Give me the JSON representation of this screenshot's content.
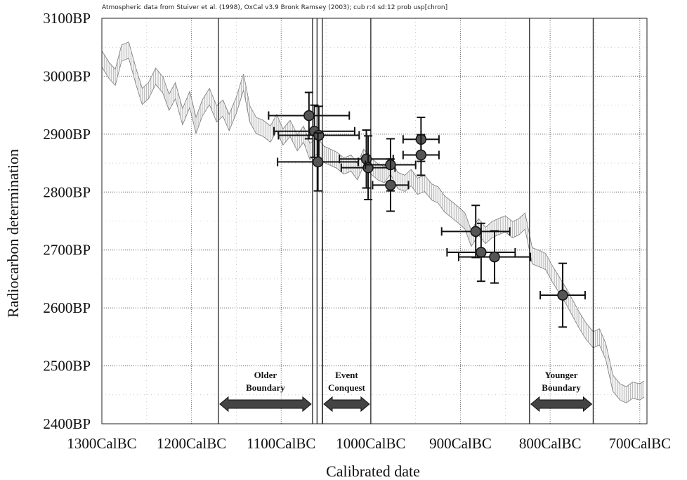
{
  "chart_data": {
    "type": "scatter",
    "caption": "Atmospheric data from Stuiver et al. (1998), OxCal v3.9 Bronk Ramsey (2003); cub r:4 sd:12 prob usp[chron]",
    "xlabel": "Calibrated date",
    "ylabel": "Radiocarbon determination",
    "x_unit": "years BC",
    "xlim": [
      -1300,
      -692
    ],
    "ylim": [
      2400,
      3100
    ],
    "x_ticks": [
      {
        "value": -1300,
        "label": "1300CalBC"
      },
      {
        "value": -1200,
        "label": "1200CalBC"
      },
      {
        "value": -1100,
        "label": "1100CalBC"
      },
      {
        "value": -1000,
        "label": "1000CalBC"
      },
      {
        "value": -900,
        "label": "900CalBC"
      },
      {
        "value": -800,
        "label": "800CalBC"
      },
      {
        "value": -700,
        "label": "700CalBC"
      }
    ],
    "y_ticks": [
      {
        "value": 3100,
        "label": "3100BP"
      },
      {
        "value": 3000,
        "label": "3000BP"
      },
      {
        "value": 2900,
        "label": "2900BP"
      },
      {
        "value": 2800,
        "label": "2800BP"
      },
      {
        "value": 2700,
        "label": "2700BP"
      },
      {
        "value": 2600,
        "label": "2600BP"
      },
      {
        "value": 2500,
        "label": "2500BP"
      },
      {
        "value": 2400,
        "label": "2400BP"
      }
    ],
    "grid": true,
    "calibration_curve": {
      "x": [
        -1300,
        -1292,
        -1285,
        -1278,
        -1270,
        -1262,
        -1255,
        -1248,
        -1240,
        -1232,
        -1225,
        -1218,
        -1210,
        -1202,
        -1195,
        -1188,
        -1180,
        -1172,
        -1165,
        -1158,
        -1150,
        -1142,
        -1135,
        -1128,
        -1120,
        -1112,
        -1105,
        -1098,
        -1090,
        -1082,
        -1075,
        -1068,
        -1060,
        -1052,
        -1045,
        -1038,
        -1030,
        -1022,
        -1015,
        -1008,
        -1000,
        -992,
        -985,
        -978,
        -970,
        -962,
        -955,
        -948,
        -940,
        -932,
        -925,
        -918,
        -910,
        -902,
        -895,
        -888,
        -880,
        -872,
        -865,
        -858,
        -850,
        -842,
        -835,
        -828,
        -820,
        -812,
        -805,
        -798,
        -790,
        -782,
        -775,
        -768,
        -760,
        -752,
        -745,
        -738,
        -730,
        -722,
        -715,
        -708,
        -700,
        -695
      ],
      "y": [
        3030,
        3010,
        2998,
        3040,
        3045,
        3000,
        2965,
        2975,
        3000,
        2985,
        2955,
        2975,
        2930,
        2960,
        2915,
        2945,
        2965,
        2935,
        2945,
        2920,
        2950,
        2990,
        2935,
        2915,
        2910,
        2900,
        2920,
        2895,
        2910,
        2885,
        2900,
        2870,
        2880,
        2865,
        2860,
        2855,
        2845,
        2850,
        2835,
        2860,
        2845,
        2835,
        2830,
        2845,
        2820,
        2815,
        2825,
        2810,
        2815,
        2800,
        2795,
        2780,
        2770,
        2760,
        2750,
        2720,
        2740,
        2725,
        2735,
        2740,
        2745,
        2735,
        2740,
        2750,
        2690,
        2685,
        2680,
        2660,
        2640,
        2620,
        2600,
        2580,
        2560,
        2545,
        2550,
        2525,
        2470,
        2455,
        2450,
        2458,
        2455,
        2460
      ],
      "band_halfwidth": 14
    },
    "series": [
      {
        "points": [
          {
            "x": -1069,
            "y": 2932,
            "x_err": 45,
            "y_err": 40
          },
          {
            "x": -1063,
            "y": 2905,
            "x_err": 45,
            "y_err": 45
          },
          {
            "x": -1058,
            "y": 2898,
            "x_err": 45,
            "y_err": 50
          },
          {
            "x": -1059,
            "y": 2852,
            "x_err": 45,
            "y_err": 50
          },
          {
            "x": -1005,
            "y": 2857,
            "x_err": 30,
            "y_err": 50
          },
          {
            "x": -1003,
            "y": 2842,
            "x_err": 30,
            "y_err": 55
          },
          {
            "x": -978,
            "y": 2847,
            "x_err": 28,
            "y_err": 45
          },
          {
            "x": -978,
            "y": 2812,
            "x_err": 20,
            "y_err": 45
          },
          {
            "x": -944,
            "y": 2891,
            "x_err": 20,
            "y_err": 38
          },
          {
            "x": -944,
            "y": 2864,
            "x_err": 20,
            "y_err": 35
          },
          {
            "x": -883,
            "y": 2732,
            "x_err": 38,
            "y_err": 45
          },
          {
            "x": -877,
            "y": 2696,
            "x_err": 38,
            "y_err": 50
          },
          {
            "x": -862,
            "y": 2688,
            "x_err": 40,
            "y_err": 45
          },
          {
            "x": -786,
            "y": 2622,
            "x_err": 25,
            "y_err": 55
          }
        ]
      }
    ],
    "phase_lines": [
      -1170,
      -1065,
      -1060,
      -1054,
      -1000,
      -823,
      -752
    ],
    "minor_line": {
      "x": -1054,
      "y_top": 2752
    },
    "phases": [
      {
        "label_lines": [
          "Older",
          "Boundary"
        ],
        "from": -1170,
        "to": -1065
      },
      {
        "label_lines": [
          "Event",
          "Conquest"
        ],
        "from": -1054,
        "to": -1000
      },
      {
        "label_lines": [
          "Younger",
          "Boundary"
        ],
        "from": -823,
        "to": -752
      }
    ]
  }
}
